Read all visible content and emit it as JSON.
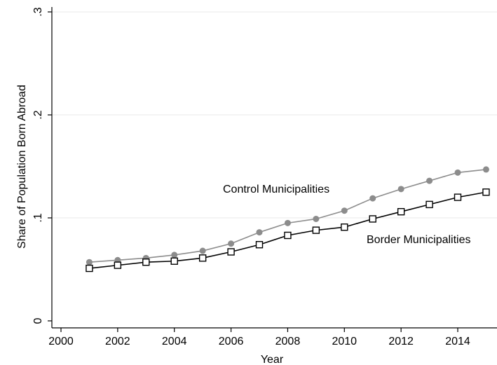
{
  "chart_data": {
    "type": "line",
    "xlabel": "Year",
    "ylabel": "Share of Population Born Abroad",
    "xlim": [
      2000,
      2015.7
    ],
    "ylim": [
      0,
      0.3
    ],
    "xticks": [
      2000,
      2002,
      2004,
      2006,
      2008,
      2010,
      2012,
      2014
    ],
    "xtick_labels": [
      "2000",
      "2002",
      "2004",
      "2006",
      "2008",
      "2010",
      "2012",
      "2014"
    ],
    "yticks": [
      0,
      0.1,
      0.2,
      0.3
    ],
    "ytick_labels": [
      "0",
      ".1",
      ".2",
      ".3"
    ],
    "grid": true,
    "x": [
      2001,
      2002,
      2003,
      2004,
      2005,
      2006,
      2007,
      2008,
      2009,
      2010,
      2011,
      2012,
      2013,
      2014,
      2015
    ],
    "series": [
      {
        "name": "Control Municipalities",
        "color": "#8c8c8c",
        "marker": "circle",
        "values": [
          0.057,
          0.059,
          0.061,
          0.064,
          0.068,
          0.075,
          0.086,
          0.095,
          0.099,
          0.107,
          0.119,
          0.128,
          0.136,
          0.144,
          0.147
        ]
      },
      {
        "name": "Border Municipalities",
        "color": "#000000",
        "marker": "hollow-square",
        "values": [
          0.051,
          0.054,
          0.057,
          0.058,
          0.061,
          0.067,
          0.074,
          0.083,
          0.088,
          0.091,
          0.099,
          0.106,
          0.113,
          0.12,
          0.125
        ]
      }
    ]
  }
}
